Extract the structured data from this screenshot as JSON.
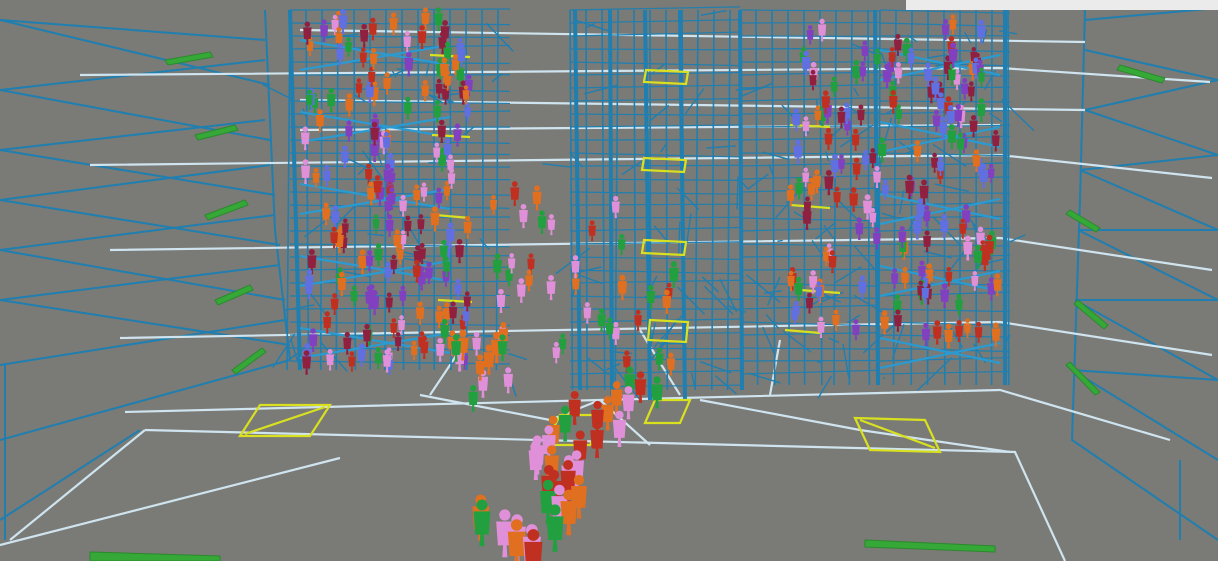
{
  "scene": {
    "description_visible_text": "",
    "colors": {
      "background": "#7a7a76",
      "structure": "#1f7fb0",
      "floor_outline": "#cfe4ee",
      "exit_marker": "#d8e020",
      "ramp_marker": "#36a838",
      "corner_mask": "#ebebeb"
    },
    "agent_palette": {
      "orange": "#e07020",
      "red": "#c03020",
      "green": "#22a040",
      "pink": "#e090d8",
      "purple": "#8040c0",
      "blue": "#6070e0",
      "maroon": "#902040"
    },
    "agent_counts": {
      "left_core": 160,
      "right_core": 160,
      "middle_core": 36,
      "floor_stream": 34
    }
  }
}
